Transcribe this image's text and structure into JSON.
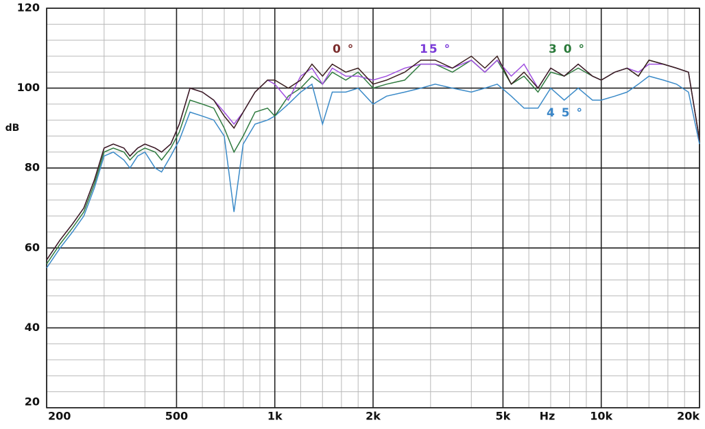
{
  "chart_data": {
    "type": "line",
    "x_label": "Hz",
    "y_label": "dB",
    "log_x": true,
    "grid": true,
    "xlim": [
      200,
      20000
    ],
    "ylim": [
      20,
      120
    ],
    "xticks": [
      200,
      500,
      {
        "value": 1000,
        "label": "1k"
      },
      {
        "value": 2000,
        "label": "2k"
      },
      {
        "value": 5000,
        "label": "5k"
      },
      {
        "value": 10000,
        "label": "10k"
      },
      {
        "value": 20000,
        "label": "20k"
      }
    ],
    "yticks": [
      20,
      40,
      60,
      80,
      100,
      120
    ],
    "minor_xticks": [
      300,
      400,
      600,
      700,
      800,
      900,
      1200,
      1400,
      1600,
      1800,
      3000,
      4000,
      6000,
      7000,
      8000,
      9000,
      12000,
      14000,
      16000,
      18000
    ],
    "minor_yticks": [
      24,
      28,
      32,
      36,
      44,
      48,
      52,
      56,
      64,
      68,
      72,
      76,
      84,
      88,
      92,
      96,
      104,
      108,
      112,
      116
    ],
    "x": [
      200,
      220,
      240,
      260,
      280,
      300,
      320,
      345,
      360,
      380,
      400,
      430,
      450,
      480,
      510,
      550,
      600,
      650,
      700,
      750,
      800,
      870,
      950,
      1000,
      1100,
      1200,
      1300,
      1400,
      1500,
      1650,
      1800,
      2000,
      2200,
      2500,
      2800,
      3100,
      3500,
      4000,
      4400,
      4800,
      5300,
      5800,
      6400,
      7000,
      7700,
      8500,
      9400,
      10000,
      11000,
      12000,
      13000,
      14000,
      15500,
      17000,
      18500,
      20000
    ],
    "series": [
      {
        "name": "0 °",
        "color": "#3a1e1e",
        "label_color": "#7b2c2c",
        "values": [
          57,
          62,
          66,
          70,
          77,
          85,
          86,
          85,
          83,
          85,
          86,
          85,
          84,
          86,
          91,
          100,
          99,
          97,
          93,
          90,
          94,
          99,
          102,
          102,
          100,
          102,
          106,
          103,
          106,
          104,
          105,
          101,
          102,
          104,
          107,
          107,
          105,
          108,
          105,
          108,
          101,
          104,
          100,
          105,
          103,
          106,
          103,
          102,
          104,
          105,
          103,
          107,
          106,
          105,
          104,
          87
        ]
      },
      {
        "name": "15 °",
        "color": "#a050e0",
        "label_color": "#7a3ad8",
        "values": [
          57,
          62,
          66,
          70,
          77,
          85,
          86,
          85,
          83,
          85,
          86,
          85,
          84,
          86,
          91,
          100,
          99,
          97,
          94,
          91,
          94,
          99,
          102,
          101,
          97,
          103,
          105,
          101,
          105,
          103,
          103,
          102,
          103,
          105,
          106,
          106,
          105,
          107,
          104,
          107,
          103,
          106,
          100,
          105,
          103,
          106,
          103,
          102,
          104,
          105,
          104,
          106,
          106,
          105,
          104,
          87
        ]
      },
      {
        "name": "3 0 °",
        "color": "#2e7a3e",
        "label_color": "#2a7a3a",
        "values": [
          56,
          61,
          65,
          69,
          76,
          84,
          85,
          84,
          82,
          84,
          85,
          84,
          82,
          85,
          89,
          97,
          96,
          95,
          90,
          84,
          88,
          94,
          95,
          93,
          98,
          100,
          103,
          101,
          104,
          102,
          104,
          100,
          101,
          102,
          106,
          106,
          104,
          107,
          104,
          107,
          101,
          103,
          99,
          104,
          103,
          105,
          103,
          102,
          104,
          105,
          103,
          107,
          106,
          105,
          104,
          87
        ]
      },
      {
        "name": "4 5 °",
        "color": "#3a8ac8",
        "label_color": "#3a86c8",
        "values": [
          55,
          60,
          64,
          68,
          75,
          83,
          84,
          82,
          80,
          83,
          84,
          80,
          79,
          83,
          87,
          94,
          93,
          92,
          88,
          69,
          86,
          91,
          92,
          93,
          96,
          99,
          101,
          91,
          99,
          99,
          100,
          96,
          98,
          99,
          100,
          101,
          100,
          99,
          100,
          101,
          98,
          95,
          95,
          100,
          97,
          100,
          97,
          97,
          98,
          99,
          101,
          103,
          102,
          101,
          99,
          86
        ]
      }
    ]
  }
}
